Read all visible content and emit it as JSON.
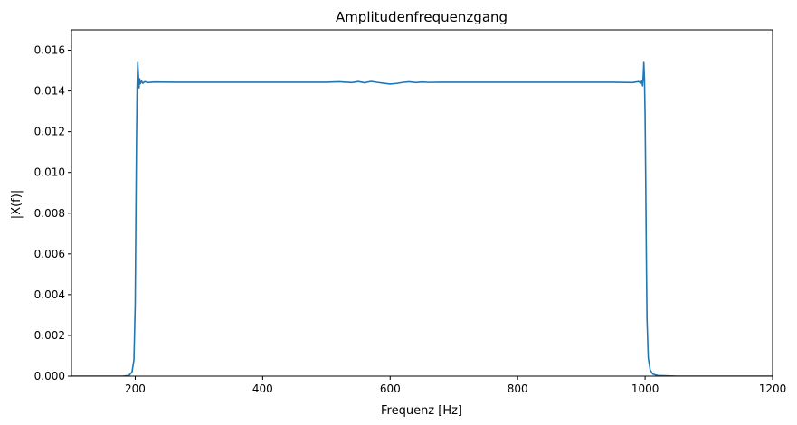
{
  "chart_data": {
    "type": "line",
    "title": "Amplitudenfrequenzgang",
    "xlabel": "Frequenz [Hz]",
    "ylabel": "|X(f)|",
    "xlim": [
      100,
      1200
    ],
    "ylim": [
      0,
      0.017
    ],
    "grid": false,
    "xticks": [
      200,
      400,
      600,
      800,
      1000,
      1200
    ],
    "xtick_labels": [
      "200",
      "400",
      "600",
      "800",
      "1000",
      "1200"
    ],
    "yticks": [
      0,
      0.002,
      0.004,
      0.006,
      0.008,
      0.01,
      0.012,
      0.014,
      0.016
    ],
    "ytick_labels": [
      "0.000",
      "0.002",
      "0.004",
      "0.006",
      "0.008",
      "0.010",
      "0.012",
      "0.014",
      "0.016"
    ],
    "line_color": "#1f77b4",
    "series": [
      {
        "x": [
          100,
          150,
          180,
          190,
          195,
          198,
          200,
          201,
          202,
          203,
          204,
          205,
          206,
          207,
          208,
          210,
          212,
          215,
          220,
          230,
          260,
          300,
          400,
          500,
          520,
          540,
          550,
          560,
          570,
          580,
          590,
          600,
          610,
          620,
          630,
          640,
          650,
          660,
          680,
          700,
          800,
          900,
          950,
          980,
          990,
          993,
          995,
          996,
          997,
          998,
          999,
          1000,
          1001,
          1002,
          1003,
          1005,
          1008,
          1012,
          1020,
          1050,
          1100,
          1200
        ],
        "y": [
          0.0,
          0.0,
          0.0,
          3e-05,
          0.0002,
          0.0008,
          0.0035,
          0.0075,
          0.0115,
          0.0142,
          0.0154,
          0.0148,
          0.01415,
          0.0146,
          0.01435,
          0.01448,
          0.01438,
          0.01446,
          0.01441,
          0.01444,
          0.01443,
          0.01443,
          0.01443,
          0.01443,
          0.01445,
          0.01441,
          0.01446,
          0.0144,
          0.01447,
          0.01442,
          0.01438,
          0.01434,
          0.01437,
          0.01442,
          0.01445,
          0.01441,
          0.01444,
          0.01442,
          0.01443,
          0.01443,
          0.01443,
          0.01443,
          0.01443,
          0.01441,
          0.01446,
          0.01438,
          0.0145,
          0.01425,
          0.0147,
          0.0154,
          0.0146,
          0.0128,
          0.0095,
          0.0058,
          0.0028,
          0.0009,
          0.0003,
          0.0001,
          3e-05,
          0.0,
          0.0,
          0.0
        ]
      }
    ]
  }
}
